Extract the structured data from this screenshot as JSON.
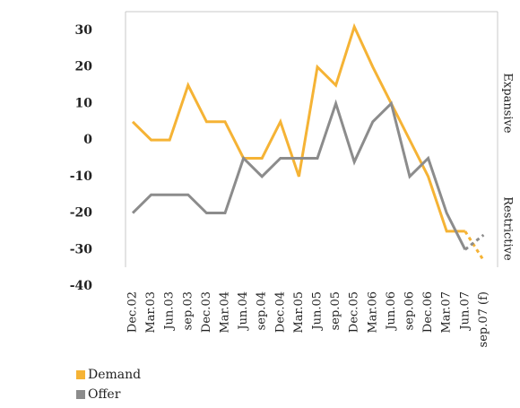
{
  "chart_data": {
    "type": "line",
    "categories": [
      "Dec.02",
      "Mar.03",
      "Jun.03",
      "sep.03",
      "Dec.03",
      "Mar.04",
      "Jun.04",
      "sep.04",
      "Dec.04",
      "Mar.05",
      "Jun.05",
      "sep.05",
      "Dec.05",
      "Mar.06",
      "Jun.06",
      "sep.06",
      "Dec.06",
      "Mar.07",
      "Jun.07",
      "sep.07 (f)"
    ],
    "series": [
      {
        "name": "Demand",
        "color": "#f5b335",
        "values": [
          5,
          0,
          0,
          15,
          5,
          5,
          -5,
          -5,
          5,
          -10,
          20,
          15,
          31,
          20,
          10,
          0,
          -10,
          -25,
          -25,
          -33
        ]
      },
      {
        "name": "Offer",
        "color": "#8c8c8c",
        "values": [
          -20,
          -15,
          -15,
          -15,
          -20,
          -20,
          -5,
          -10,
          -5,
          -5,
          -5,
          10,
          -6,
          5,
          10,
          -10,
          -5,
          -20,
          -30,
          -26
        ]
      }
    ],
    "ylim": [
      -40,
      35
    ],
    "yticks": [
      30,
      20,
      10,
      0,
      -10,
      -20,
      -30,
      -40
    ],
    "right_labels": [
      "Expansive",
      "Restrictive"
    ]
  }
}
